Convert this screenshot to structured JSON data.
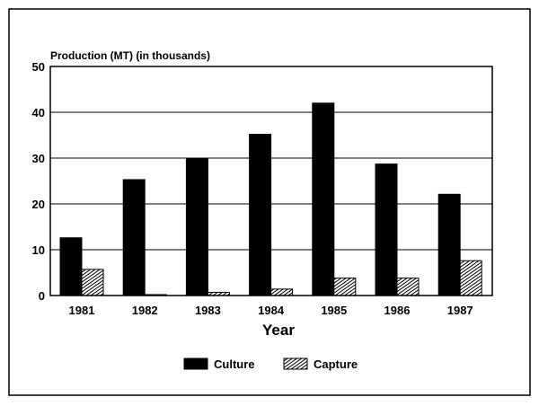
{
  "chart_data": {
    "type": "bar",
    "title": "",
    "ylabel": "Production (MT) (in thousands)",
    "xlabel": "Year",
    "categories": [
      "1981",
      "1982",
      "1983",
      "1984",
      "1985",
      "1986",
      "1987"
    ],
    "series": [
      {
        "name": "Culture",
        "values": [
          12.6,
          25.3,
          30.0,
          35.2,
          42.0,
          28.7,
          22.1
        ],
        "color": "#000000",
        "pattern": "solid"
      },
      {
        "name": "Capture",
        "values": [
          5.7,
          0.2,
          0.7,
          1.4,
          3.8,
          3.8,
          7.6
        ],
        "color": "#000000",
        "pattern": "hatched"
      }
    ],
    "ylim": [
      0,
      50
    ],
    "yticks": [
      0,
      10,
      20,
      30,
      40,
      50
    ],
    "grid": true,
    "legend": "bottom-center"
  }
}
